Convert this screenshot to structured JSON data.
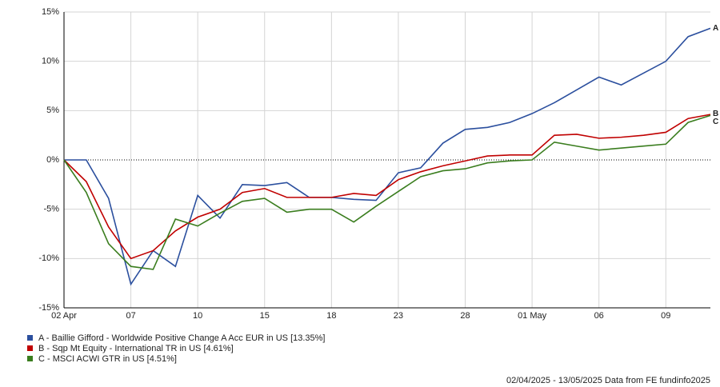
{
  "chart_data": {
    "type": "line",
    "categories": [
      "02 Apr",
      null,
      null,
      "07",
      null,
      null,
      "10",
      null,
      null,
      "15",
      null,
      null,
      "18",
      null,
      null,
      "23",
      null,
      null,
      "28",
      null,
      null,
      "01 May",
      null,
      null,
      "06",
      null,
      null,
      "09",
      null,
      null
    ],
    "series": [
      {
        "name": "A - Baillie Gifford - Worldwide Positive Change A Acc EUR in US [13.35%]",
        "end_label": "A",
        "color": "#2b4f9e",
        "values": [
          0,
          0,
          -3.9,
          -12.6,
          -9.2,
          -10.8,
          -3.6,
          -5.9,
          -2.5,
          -2.6,
          -2.3,
          -3.8,
          -3.8,
          -4.0,
          -4.1,
          -1.3,
          -0.8,
          1.7,
          3.1,
          3.3,
          3.8,
          4.7,
          5.8,
          7.1,
          8.4,
          7.6,
          8.8,
          10.0,
          12.5,
          13.35
        ]
      },
      {
        "name": "B - Sqp Mt Equity - International TR in US [4.61%]",
        "end_label": "B",
        "color": "#c00000",
        "values": [
          0,
          -2.2,
          -6.8,
          -10.0,
          -9.2,
          -7.2,
          -5.8,
          -5.0,
          -3.3,
          -2.9,
          -3.8,
          -3.8,
          -3.8,
          -3.4,
          -3.6,
          -2.0,
          -1.2,
          -0.6,
          -0.1,
          0.4,
          0.5,
          0.5,
          2.5,
          2.6,
          2.2,
          2.3,
          2.5,
          2.8,
          4.2,
          4.61
        ]
      },
      {
        "name": "C - MSCI ACWI GTR in US [4.51%]",
        "end_label": "C",
        "color": "#3a7d1e",
        "values": [
          0,
          -3.3,
          -8.5,
          -10.8,
          -11.1,
          -6.0,
          -6.7,
          -5.4,
          -4.2,
          -3.9,
          -5.3,
          -5.0,
          -5.0,
          -6.3,
          -4.7,
          -3.2,
          -1.7,
          -1.1,
          -0.9,
          -0.3,
          -0.1,
          0.0,
          1.8,
          1.4,
          1.0,
          1.2,
          1.4,
          1.6,
          3.8,
          4.51
        ]
      }
    ],
    "ylim": [
      -15,
      15
    ],
    "yticks": [
      {
        "value": -15,
        "label": "-15%"
      },
      {
        "value": -10,
        "label": "-10%"
      },
      {
        "value": -5,
        "label": "-5%"
      },
      {
        "value": 0,
        "label": "0%"
      },
      {
        "value": 5,
        "label": "5%"
      },
      {
        "value": 10,
        "label": "10%"
      },
      {
        "value": 15,
        "label": "15%"
      }
    ],
    "grid": true,
    "legend": "bottom-left",
    "footer": "02/04/2025 - 13/05/2025 Data from FE fundinfo2025"
  }
}
